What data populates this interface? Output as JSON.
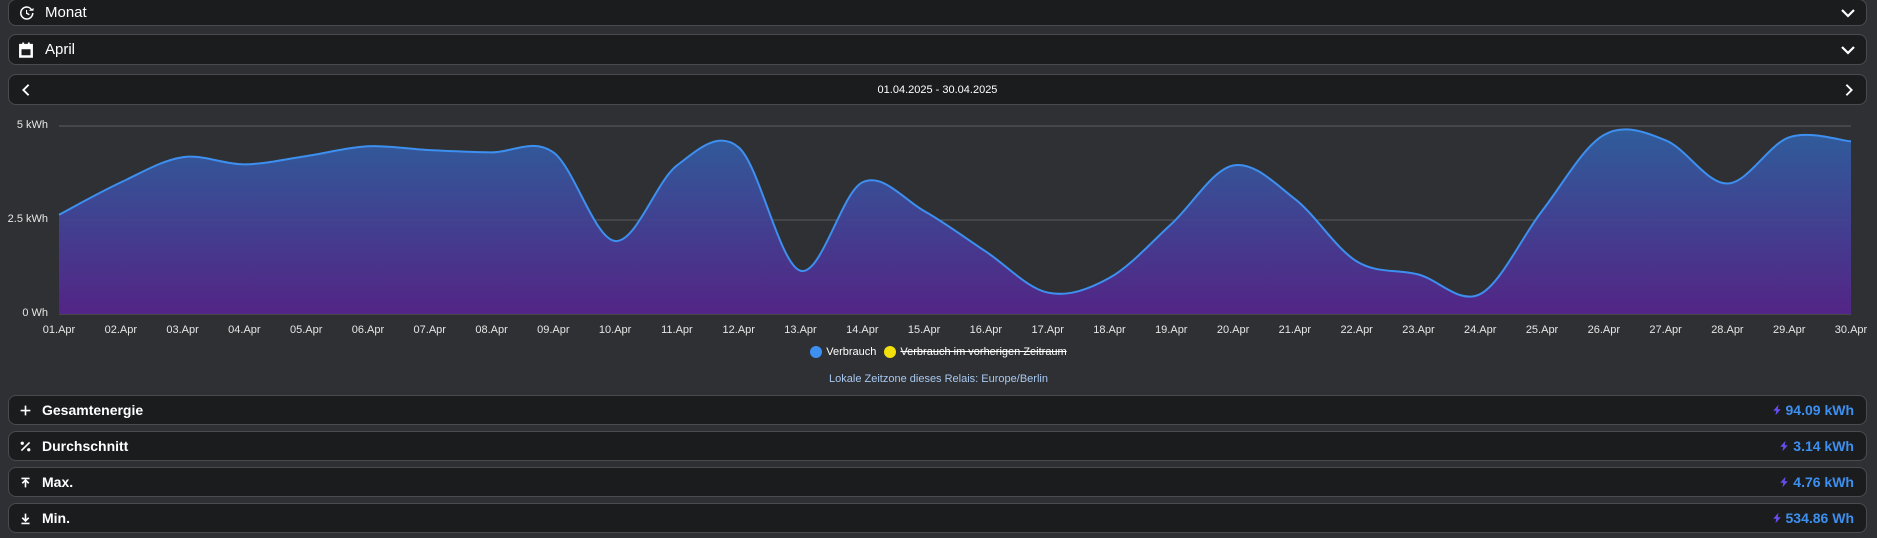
{
  "controls": {
    "period": "Monat",
    "month": "April",
    "range": "01.04.2025 - 30.04.2025"
  },
  "chart_data": {
    "type": "line",
    "categories": [
      "01.Apr",
      "02.Apr",
      "03.Apr",
      "04.Apr",
      "05.Apr",
      "06.Apr",
      "07.Apr",
      "08.Apr",
      "09.Apr",
      "10.Apr",
      "11.Apr",
      "12.Apr",
      "13.Apr",
      "14.Apr",
      "15.Apr",
      "16.Apr",
      "17.Apr",
      "18.Apr",
      "19.Apr",
      "20.Apr",
      "21.Apr",
      "22.Apr",
      "23.Apr",
      "24.Apr",
      "25.Apr",
      "26.Apr",
      "27.Apr",
      "28.Apr",
      "29.Apr",
      "30.Apr"
    ],
    "series": [
      {
        "name": "Verbrauch",
        "color": "#3d8ff0",
        "values": [
          2.64,
          3.5,
          4.17,
          3.98,
          4.2,
          4.46,
          4.36,
          4.3,
          4.3,
          1.94,
          3.95,
          4.43,
          1.15,
          3.5,
          2.74,
          1.66,
          0.57,
          0.96,
          2.39,
          3.95,
          3.06,
          1.4,
          1.05,
          0.53,
          2.74,
          4.76,
          4.62,
          3.47,
          4.7,
          4.59
        ]
      },
      {
        "name": "Verbrauch im vorherigen Zeitraum",
        "color": "#f2e00c",
        "hidden": true
      }
    ],
    "ylim": [
      0,
      5
    ],
    "yticks": [
      {
        "value": 0,
        "label": "0 Wh"
      },
      {
        "value": 2.5,
        "label": "2.5 kWh"
      },
      {
        "value": 5,
        "label": "5 kWh"
      }
    ],
    "grid": true,
    "note": "Lokale Zeitzone dieses Relais: Europe/Berlin"
  },
  "stats": [
    {
      "label": "Gesamtenergie",
      "value": "94.09 kWh"
    },
    {
      "label": "Durchschnitt",
      "value": "3.14 kWh"
    },
    {
      "label": "Max.",
      "value": "4.76 kWh"
    },
    {
      "label": "Min.",
      "value": "534.86 Wh"
    }
  ]
}
